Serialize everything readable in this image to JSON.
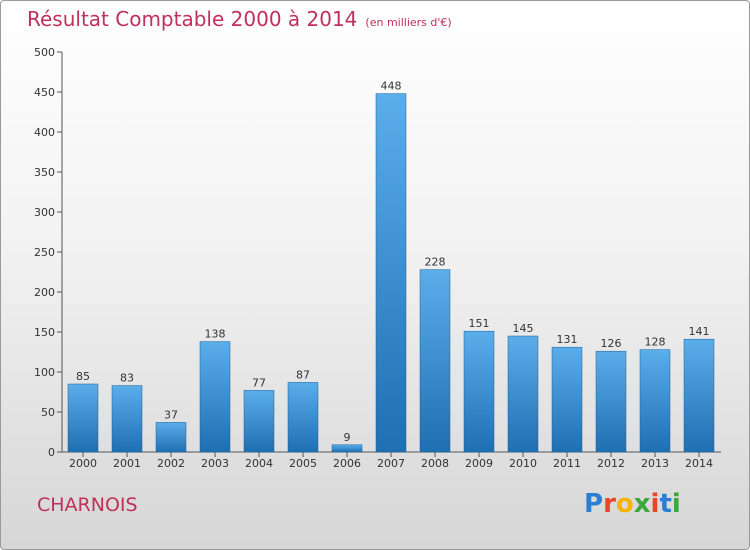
{
  "title": "Résultat Comptable 2000 à 2014",
  "unit": "(en milliers d'€)",
  "commune": "CHARNOIS",
  "logo": {
    "text": "Proxiti",
    "colors": [
      "#2a7fd4",
      "#e8462a",
      "#f6b400",
      "#3aa83a",
      "#e8462a",
      "#2a7fd4",
      "#3aa83a"
    ]
  },
  "colors": {
    "title": "#c0305a",
    "bar_light": "#5aaeea",
    "bar_dark": "#1f6fb2"
  },
  "chart_data": {
    "type": "bar",
    "categories": [
      "2000",
      "2001",
      "2002",
      "2003",
      "2004",
      "2005",
      "2006",
      "2007",
      "2008",
      "2009",
      "2010",
      "2011",
      "2012",
      "2013",
      "2014"
    ],
    "values": [
      85,
      83,
      37,
      138,
      77,
      87,
      9,
      448,
      228,
      151,
      145,
      131,
      126,
      128,
      141
    ],
    "ylim": [
      0,
      500
    ],
    "yticks": [
      0,
      50,
      100,
      150,
      200,
      250,
      300,
      350,
      400,
      450,
      500
    ],
    "grid": false,
    "legend": "none"
  }
}
